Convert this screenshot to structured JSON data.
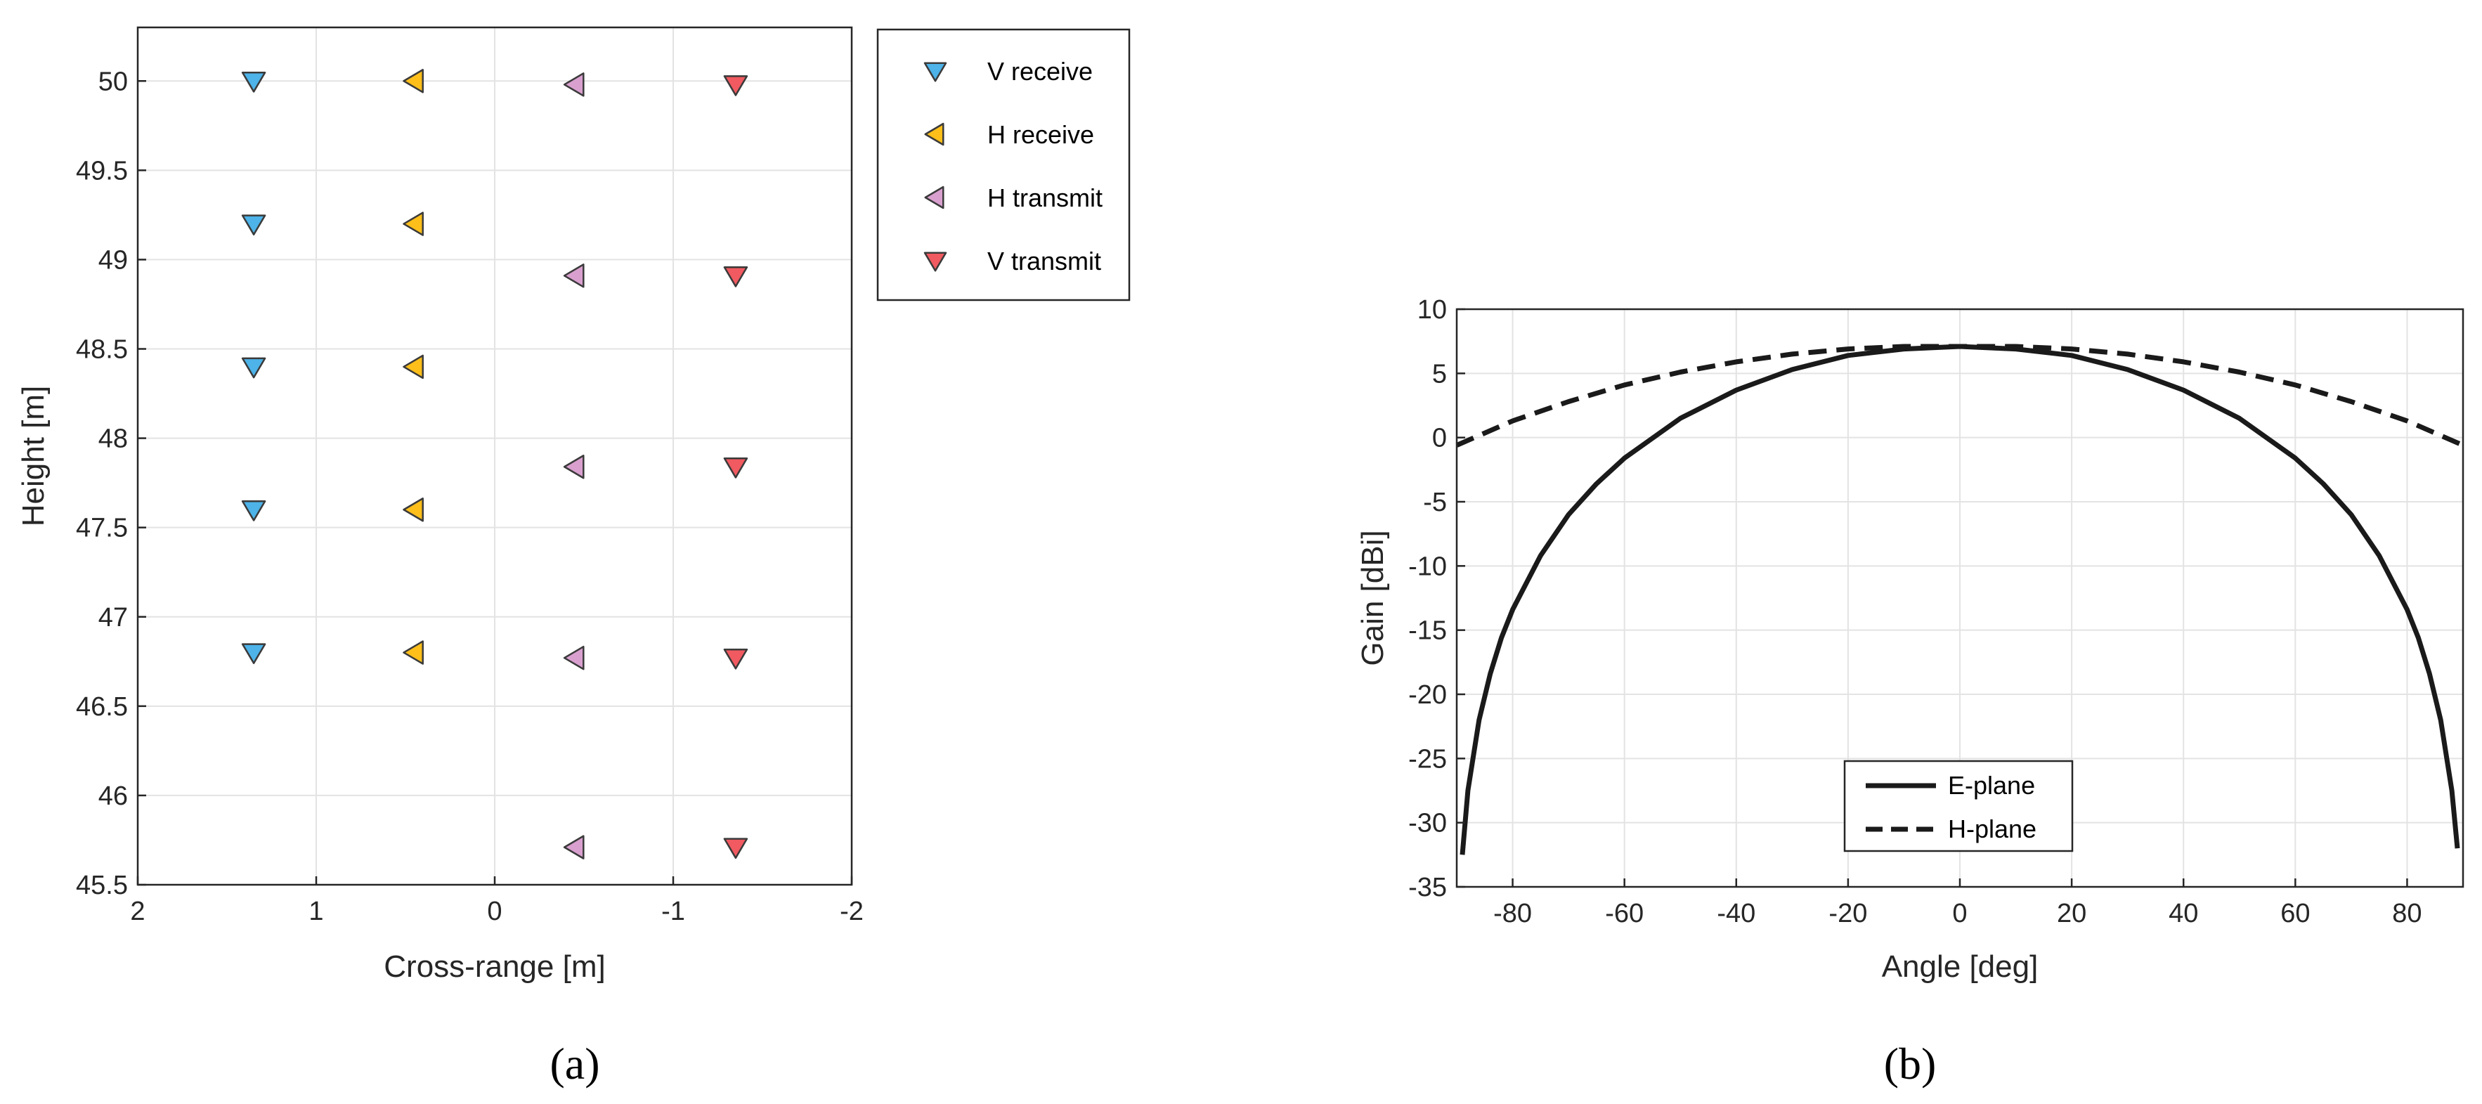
{
  "chart_data": [
    {
      "type": "scatter",
      "xlabel": "Cross-range [m]",
      "ylabel": "Height [m]",
      "xlim": [
        2,
        -2
      ],
      "ylim": [
        45.5,
        50.3
      ],
      "x_reversed": true,
      "xticks": [
        "2",
        "1",
        "0",
        "-1",
        "-2"
      ],
      "yticks": [
        "45.5",
        "46",
        "46.5",
        "47",
        "47.5",
        "48",
        "48.5",
        "49",
        "49.5",
        "50"
      ],
      "grid": true,
      "legend_position": "outside-right-top",
      "caption": "(a)",
      "series": [
        {
          "name": "V receive",
          "marker": "triangle-down",
          "color": "#4db3e8",
          "points": [
            [
              1.35,
              50.0
            ],
            [
              1.35,
              49.2
            ],
            [
              1.35,
              48.4
            ],
            [
              1.35,
              47.6
            ],
            [
              1.35,
              46.8
            ]
          ]
        },
        {
          "name": "H receive",
          "marker": "triangle-left",
          "color": "#ffbf1a",
          "points": [
            [
              0.45,
              50.0
            ],
            [
              0.45,
              49.2
            ],
            [
              0.45,
              48.4
            ],
            [
              0.45,
              47.6
            ],
            [
              0.45,
              46.8
            ]
          ]
        },
        {
          "name": "H transmit",
          "marker": "triangle-left",
          "color": "#d9a0cf",
          "points": [
            [
              -0.45,
              49.98
            ],
            [
              -0.45,
              48.91
            ],
            [
              -0.45,
              47.84
            ],
            [
              -0.45,
              46.77
            ],
            [
              -0.45,
              45.71
            ]
          ]
        },
        {
          "name": "V transmit",
          "marker": "triangle-down",
          "color": "#f05a60",
          "points": [
            [
              -1.35,
              49.98
            ],
            [
              -1.35,
              48.91
            ],
            [
              -1.35,
              47.84
            ],
            [
              -1.35,
              46.77
            ],
            [
              -1.35,
              45.71
            ]
          ]
        }
      ]
    },
    {
      "type": "line",
      "xlabel": "Angle [deg]",
      "ylabel": "Gain [dBi]",
      "xlim": [
        -90,
        90
      ],
      "ylim": [
        -35,
        10
      ],
      "xticks": [
        "-80",
        "-60",
        "-40",
        "-20",
        "0",
        "20",
        "40",
        "60",
        "80"
      ],
      "yticks": [
        "-35",
        "-30",
        "-25",
        "-20",
        "-15",
        "-10",
        "-5",
        "0",
        "5",
        "10"
      ],
      "grid": true,
      "legend_position": "bottom-center",
      "caption": "(b)",
      "series": [
        {
          "name": "E-plane",
          "style": "solid",
          "color": "#1a1a1a",
          "x": [
            -89,
            -88,
            -86,
            -84,
            -82,
            -80,
            -75,
            -70,
            -65,
            -60,
            -50,
            -40,
            -30,
            -20,
            -10,
            0,
            10,
            20,
            30,
            40,
            50,
            60,
            65,
            70,
            75,
            80,
            82,
            84,
            86,
            88,
            89
          ],
          "y": [
            -32.5,
            -27.5,
            -22.0,
            -18.4,
            -15.6,
            -13.4,
            -9.2,
            -6.0,
            -3.6,
            -1.6,
            1.5,
            3.7,
            5.3,
            6.4,
            6.9,
            7.1,
            6.9,
            6.4,
            5.3,
            3.7,
            1.5,
            -1.6,
            -3.6,
            -6.0,
            -9.2,
            -13.4,
            -15.6,
            -18.4,
            -22.0,
            -27.5,
            -32.0
          ]
        },
        {
          "name": "H-plane",
          "style": "dashed",
          "color": "#1a1a1a",
          "x": [
            -90,
            -80,
            -70,
            -60,
            -50,
            -40,
            -30,
            -20,
            -10,
            0,
            10,
            20,
            30,
            40,
            50,
            60,
            70,
            80,
            90
          ],
          "y": [
            -0.6,
            1.3,
            2.8,
            4.1,
            5.1,
            5.9,
            6.5,
            6.9,
            7.1,
            7.1,
            7.1,
            6.9,
            6.5,
            5.9,
            5.1,
            4.1,
            2.8,
            1.3,
            -0.6
          ]
        }
      ]
    }
  ]
}
